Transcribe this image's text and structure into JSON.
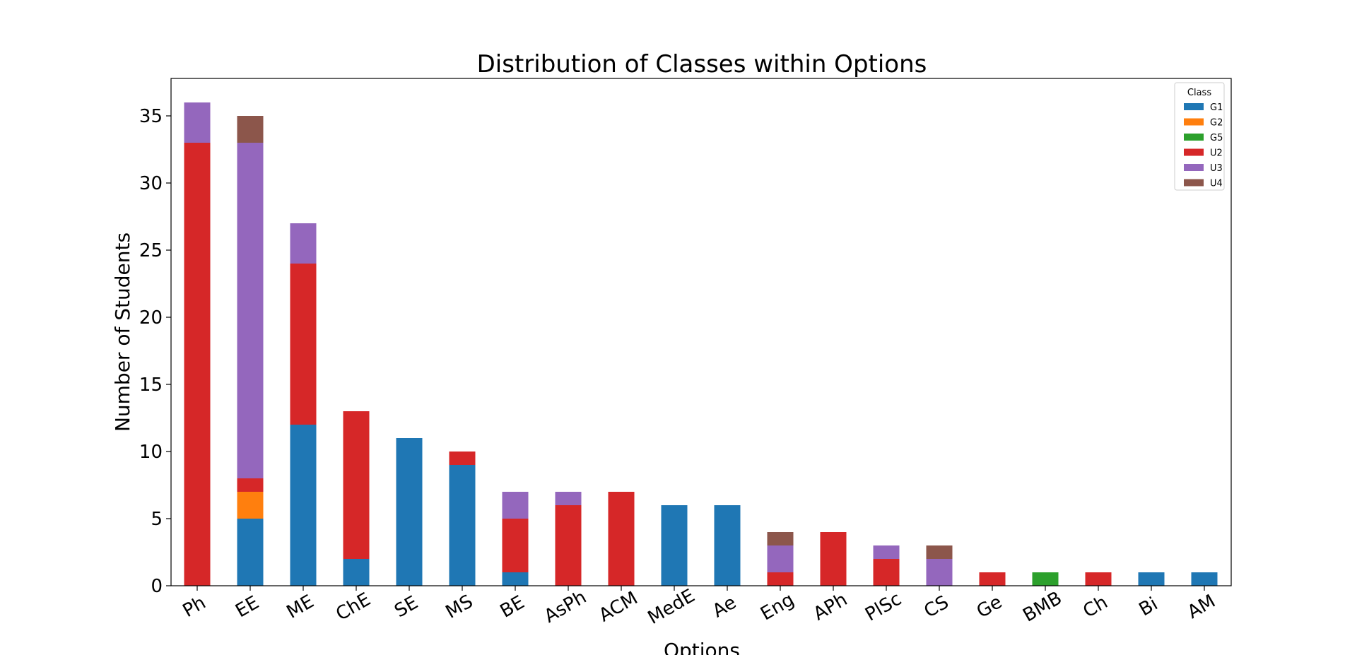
{
  "chart_data": {
    "type": "bar",
    "stacked": true,
    "title": "Distribution of Classes within Options",
    "xlabel": "Options",
    "ylabel": "Number of Students",
    "ylim": [
      0,
      38
    ],
    "yticks": [
      0,
      5,
      10,
      15,
      20,
      25,
      30,
      35
    ],
    "grid": false,
    "legend": {
      "title": "Class",
      "position": "top-right"
    },
    "categories": [
      "Ph",
      "EE",
      "ME",
      "ChE",
      "SE",
      "MS",
      "BE",
      "AsPh",
      "ACM",
      "MedE",
      "Ae",
      "Eng",
      "APh",
      "PlSc",
      "CS",
      "Ge",
      "BMB",
      "Ch",
      "Bi",
      "AM"
    ],
    "series": [
      {
        "name": "G1",
        "color": "#1f77b4",
        "values": [
          0,
          5,
          12,
          2,
          11,
          9,
          1,
          0,
          0,
          6,
          6,
          0,
          0,
          0,
          0,
          0,
          0,
          0,
          1,
          1
        ]
      },
      {
        "name": "G2",
        "color": "#ff7f0e",
        "values": [
          0,
          2,
          0,
          0,
          0,
          0,
          0,
          0,
          0,
          0,
          0,
          0,
          0,
          0,
          0,
          0,
          0,
          0,
          0,
          0
        ]
      },
      {
        "name": "G5",
        "color": "#2ca02c",
        "values": [
          0,
          0,
          0,
          0,
          0,
          0,
          0,
          0,
          0,
          0,
          0,
          0,
          0,
          0,
          0,
          0,
          1,
          0,
          0,
          0
        ]
      },
      {
        "name": "U2",
        "color": "#d62728",
        "values": [
          33,
          1,
          12,
          11,
          0,
          1,
          4,
          6,
          7,
          0,
          0,
          1,
          4,
          2,
          0,
          1,
          0,
          1,
          0,
          0
        ]
      },
      {
        "name": "U3",
        "color": "#9467bd",
        "values": [
          3,
          25,
          3,
          0,
          0,
          0,
          2,
          1,
          0,
          0,
          0,
          2,
          0,
          1,
          2,
          0,
          0,
          0,
          0,
          0
        ]
      },
      {
        "name": "U4",
        "color": "#8c564b",
        "values": [
          0,
          2,
          0,
          0,
          0,
          0,
          0,
          0,
          0,
          0,
          0,
          1,
          0,
          0,
          1,
          0,
          0,
          0,
          0,
          0
        ]
      }
    ]
  }
}
